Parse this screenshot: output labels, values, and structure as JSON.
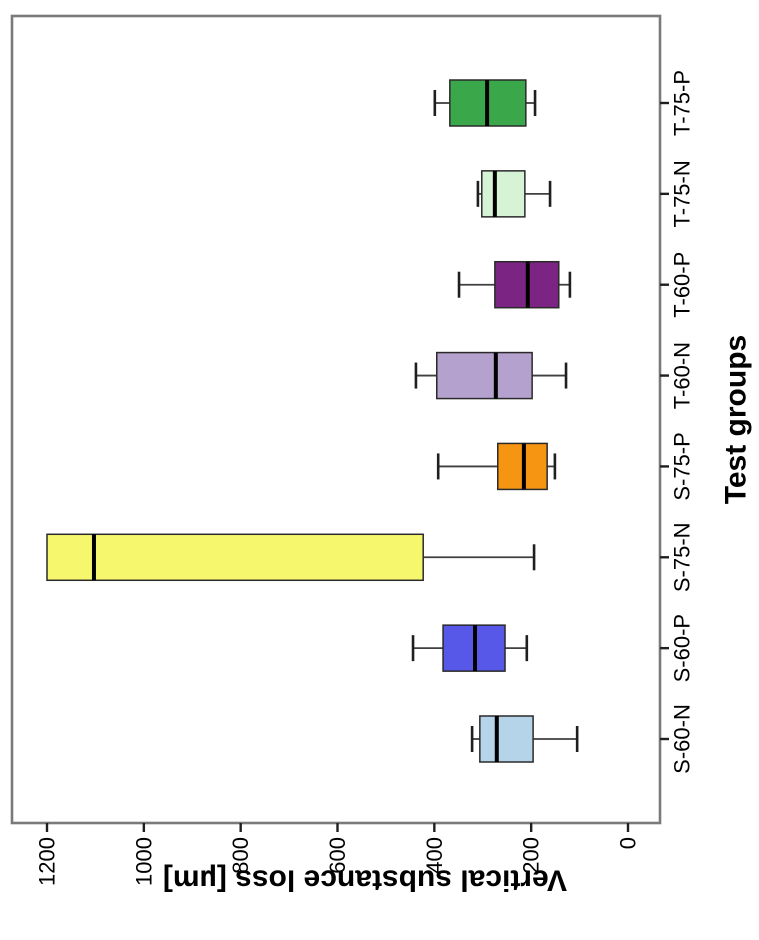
{
  "figure": {
    "background": "#ffffff",
    "note": "landscape boxplot figure rotated 90 degrees counter-clockwise inside a portrait image"
  },
  "chart_data": {
    "type": "boxplot",
    "title": "",
    "xlabel": "Test groups",
    "ylabel": "Vertical substance loss [µm]",
    "ylim": [
      0,
      1200
    ],
    "yticks": [
      0,
      200,
      400,
      600,
      800,
      1000,
      1200
    ],
    "grid": false,
    "legend": "none",
    "layout_hints": {
      "rotated_ccw": true,
      "value_axis": "horizontal-in-image, 0 at right, 1200 at left",
      "category_axis": "vertical-in-image, S-60-N at bottom, T-75-P at top"
    },
    "categories": [
      "S-60-N",
      "S-60-P",
      "S-75-N",
      "S-75-P",
      "T-60-N",
      "T-60-P",
      "T-75-N",
      "T-75-P"
    ],
    "series": [
      {
        "group": "S-60-N",
        "color": "#b5d4ea",
        "whisker_low": 105,
        "q1": 196,
        "median": 271,
        "q3": 306,
        "whisker_high": 322
      },
      {
        "group": "S-60-P",
        "color": "#5757e8",
        "whisker_low": 209,
        "q1": 254,
        "median": 316,
        "q3": 382,
        "whisker_high": 444
      },
      {
        "group": "S-75-N",
        "color": "#f7f76e",
        "whisker_low": 194,
        "q1": 423,
        "median": 1103,
        "q3": 1200,
        "whisker_high": 1200
      },
      {
        "group": "S-75-P",
        "color": "#f59511",
        "whisker_low": 151,
        "q1": 167,
        "median": 215,
        "q3": 269,
        "whisker_high": 392
      },
      {
        "group": "T-60-N",
        "color": "#b5a1cd",
        "whisker_low": 128,
        "q1": 198,
        "median": 273,
        "q3": 395,
        "whisker_high": 438
      },
      {
        "group": "T-60-P",
        "color": "#7c2483",
        "whisker_low": 120,
        "q1": 143,
        "median": 207,
        "q3": 275,
        "whisker_high": 349
      },
      {
        "group": "T-75-N",
        "color": "#d6f3d6",
        "whisker_low": 161,
        "q1": 213,
        "median": 275,
        "q3": 302,
        "whisker_high": 310
      },
      {
        "group": "T-75-P",
        "color": "#3ba74b",
        "whisker_low": 192,
        "q1": 211,
        "median": 291,
        "q3": 368,
        "whisker_high": 399
      }
    ],
    "style": {
      "frame_color": "#7a7a7a",
      "tick_color": "#1f1f1f",
      "box_border_color": "#2a2a2a",
      "median_color": "#000000",
      "whisker_color": "#3f3f3f",
      "text_color": "#000000"
    }
  }
}
